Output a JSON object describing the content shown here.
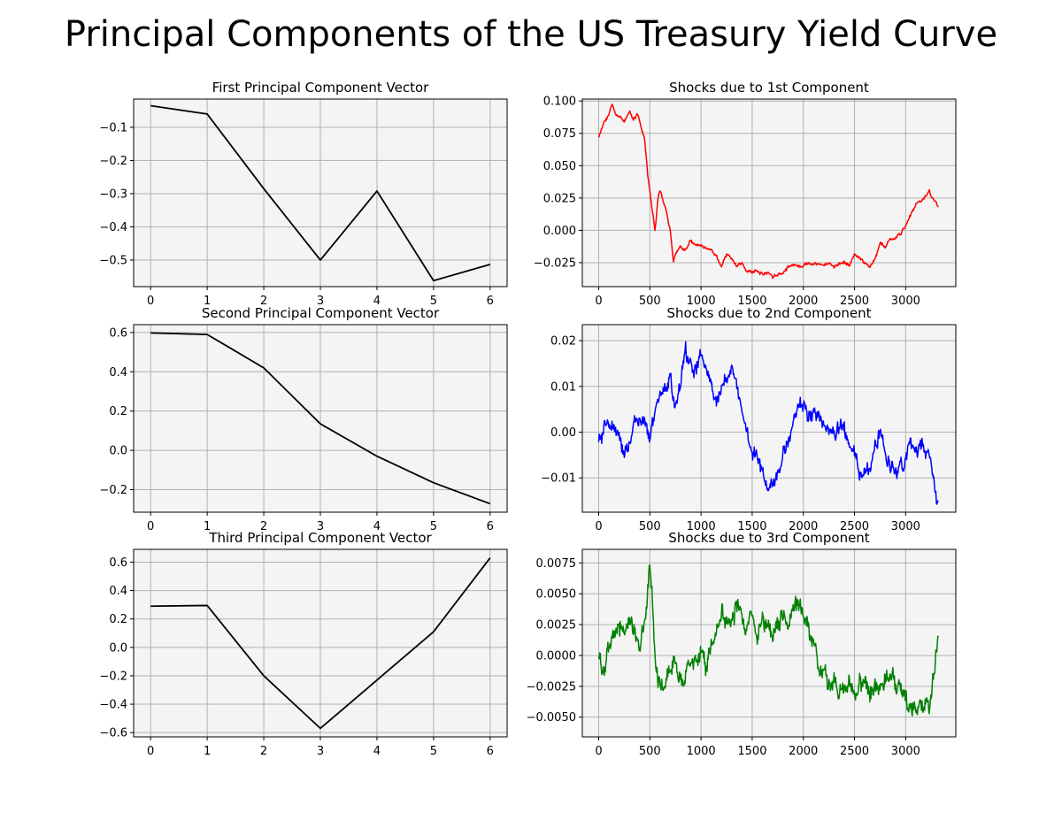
{
  "figure": {
    "title": "Principal Components of the US Treasury Yield Curve"
  },
  "chart_data": [
    {
      "type": "line",
      "title": "First Principal Component Vector",
      "color": "#000000",
      "x": [
        0,
        1,
        2,
        3,
        4,
        5,
        6
      ],
      "y": [
        -0.035,
        -0.06,
        -0.285,
        -0.5,
        -0.292,
        -0.562,
        -0.513
      ],
      "xlim": [
        -0.3,
        6.3
      ],
      "ylim": [
        -0.58,
        -0.015
      ],
      "xticks": [
        0,
        1,
        2,
        3,
        4,
        5,
        6
      ],
      "yticks": [
        -0.5,
        -0.4,
        -0.3,
        -0.2,
        -0.1
      ],
      "ytick_labels": [
        "−0.5",
        "−0.4",
        "−0.3",
        "−0.2",
        "−0.1"
      ],
      "grid": true,
      "background": "#f4f4f4"
    },
    {
      "type": "line",
      "title": "Shocks due to 1st Component",
      "color": "#ff0000",
      "keypoints": [
        [
          0,
          0.072
        ],
        [
          20,
          0.076
        ],
        [
          60,
          0.085
        ],
        [
          100,
          0.09
        ],
        [
          130,
          0.097
        ],
        [
          160,
          0.091
        ],
        [
          200,
          0.088
        ],
        [
          250,
          0.085
        ],
        [
          300,
          0.091
        ],
        [
          340,
          0.087
        ],
        [
          380,
          0.09
        ],
        [
          420,
          0.078
        ],
        [
          450,
          0.07
        ],
        [
          480,
          0.042
        ],
        [
          500,
          0.03
        ],
        [
          530,
          0.012
        ],
        [
          550,
          0.0
        ],
        [
          580,
          0.025
        ],
        [
          600,
          0.03
        ],
        [
          650,
          0.018
        ],
        [
          700,
          0.0
        ],
        [
          730,
          -0.025
        ],
        [
          760,
          -0.018
        ],
        [
          800,
          -0.012
        ],
        [
          850,
          -0.015
        ],
        [
          900,
          -0.008
        ],
        [
          950,
          -0.013
        ],
        [
          1000,
          -0.01
        ],
        [
          1050,
          -0.013
        ],
        [
          1100,
          -0.015
        ],
        [
          1150,
          -0.02
        ],
        [
          1200,
          -0.027
        ],
        [
          1250,
          -0.019
        ],
        [
          1300,
          -0.022
        ],
        [
          1350,
          -0.028
        ],
        [
          1400,
          -0.025
        ],
        [
          1450,
          -0.031
        ],
        [
          1500,
          -0.033
        ],
        [
          1550,
          -0.031
        ],
        [
          1600,
          -0.034
        ],
        [
          1650,
          -0.032
        ],
        [
          1700,
          -0.035
        ],
        [
          1750,
          -0.034
        ],
        [
          1800,
          -0.033
        ],
        [
          1850,
          -0.028
        ],
        [
          1900,
          -0.027
        ],
        [
          1950,
          -0.026
        ],
        [
          2000,
          -0.028
        ],
        [
          2050,
          -0.025
        ],
        [
          2100,
          -0.027
        ],
        [
          2150,
          -0.026
        ],
        [
          2200,
          -0.027
        ],
        [
          2250,
          -0.025
        ],
        [
          2300,
          -0.028
        ],
        [
          2350,
          -0.026
        ],
        [
          2400,
          -0.024
        ],
        [
          2450,
          -0.027
        ],
        [
          2500,
          -0.019
        ],
        [
          2550,
          -0.022
        ],
        [
          2600,
          -0.025
        ],
        [
          2650,
          -0.028
        ],
        [
          2700,
          -0.023
        ],
        [
          2750,
          -0.01
        ],
        [
          2800,
          -0.013
        ],
        [
          2850,
          -0.007
        ],
        [
          2900,
          -0.006
        ],
        [
          2950,
          -0.003
        ],
        [
          3000,
          0.004
        ],
        [
          3050,
          0.012
        ],
        [
          3100,
          0.02
        ],
        [
          3150,
          0.023
        ],
        [
          3200,
          0.027
        ],
        [
          3230,
          0.031
        ],
        [
          3260,
          0.025
        ],
        [
          3290,
          0.022
        ],
        [
          3320,
          0.018
        ]
      ],
      "noise": 0.0025,
      "xlim": [
        -160,
        3490
      ],
      "ylim": [
        -0.0435,
        0.1015
      ],
      "xticks": [
        0,
        500,
        1000,
        1500,
        2000,
        2500,
        3000
      ],
      "yticks": [
        -0.025,
        0.0,
        0.025,
        0.05,
        0.075,
        0.1
      ],
      "ytick_labels": [
        "−0.025",
        "0.000",
        "0.025",
        "0.050",
        "0.075",
        "0.100"
      ],
      "grid": true,
      "background": "#f4f4f4"
    },
    {
      "type": "line",
      "title": "Second Principal Component Vector",
      "color": "#000000",
      "x": [
        0,
        1,
        2,
        3,
        4,
        5,
        6
      ],
      "y": [
        0.598,
        0.59,
        0.42,
        0.135,
        -0.03,
        -0.165,
        -0.272
      ],
      "xlim": [
        -0.3,
        6.3
      ],
      "ylim": [
        -0.315,
        0.64
      ],
      "xticks": [
        0,
        1,
        2,
        3,
        4,
        5,
        6
      ],
      "yticks": [
        -0.2,
        0.0,
        0.2,
        0.4,
        0.6
      ],
      "ytick_labels": [
        "−0.2",
        "0.0",
        "0.2",
        "0.4",
        "0.6"
      ],
      "grid": true,
      "background": "#f4f4f4"
    },
    {
      "type": "line",
      "title": "Shocks due to 2nd Component",
      "color": "#0000ff",
      "keypoints": [
        [
          0,
          -0.002
        ],
        [
          50,
          -0.001
        ],
        [
          100,
          0.003
        ],
        [
          150,
          0.0
        ],
        [
          200,
          -0.003
        ],
        [
          250,
          -0.004
        ],
        [
          300,
          -0.002
        ],
        [
          350,
          0.002
        ],
        [
          400,
          0.003
        ],
        [
          450,
          0.001
        ],
        [
          500,
          -0.002
        ],
        [
          550,
          0.004
        ],
        [
          600,
          0.007
        ],
        [
          650,
          0.01
        ],
        [
          700,
          0.012
        ],
        [
          750,
          0.005
        ],
        [
          800,
          0.01
        ],
        [
          850,
          0.018
        ],
        [
          900,
          0.015
        ],
        [
          950,
          0.013
        ],
        [
          1000,
          0.017
        ],
        [
          1050,
          0.013
        ],
        [
          1100,
          0.01
        ],
        [
          1150,
          0.005
        ],
        [
          1200,
          0.01
        ],
        [
          1250,
          0.012
        ],
        [
          1300,
          0.015
        ],
        [
          1350,
          0.01
        ],
        [
          1400,
          0.005
        ],
        [
          1450,
          0.0
        ],
        [
          1500,
          -0.005
        ],
        [
          1550,
          -0.006
        ],
        [
          1600,
          -0.008
        ],
        [
          1650,
          -0.012
        ],
        [
          1700,
          -0.01
        ],
        [
          1750,
          -0.008
        ],
        [
          1800,
          -0.006
        ],
        [
          1850,
          -0.003
        ],
        [
          1900,
          0.003
        ],
        [
          1950,
          0.005
        ],
        [
          2000,
          0.006
        ],
        [
          2050,
          0.004
        ],
        [
          2100,
          0.005
        ],
        [
          2150,
          0.002
        ],
        [
          2200,
          0.003
        ],
        [
          2250,
          0.0
        ],
        [
          2300,
          -0.001
        ],
        [
          2350,
          0.001
        ],
        [
          2400,
          0.0
        ],
        [
          2450,
          -0.003
        ],
        [
          2500,
          -0.005
        ],
        [
          2550,
          -0.01
        ],
        [
          2600,
          -0.009
        ],
        [
          2650,
          -0.008
        ],
        [
          2700,
          -0.003
        ],
        [
          2750,
          0.0
        ],
        [
          2800,
          -0.005
        ],
        [
          2850,
          -0.007
        ],
        [
          2900,
          -0.008
        ],
        [
          2950,
          -0.006
        ],
        [
          3000,
          -0.006
        ],
        [
          3050,
          -0.003
        ],
        [
          3100,
          -0.004
        ],
        [
          3150,
          -0.003
        ],
        [
          3200,
          -0.005
        ],
        [
          3250,
          -0.008
        ],
        [
          3280,
          -0.012
        ],
        [
          3320,
          -0.015
        ]
      ],
      "noise": 0.0035,
      "xlim": [
        -160,
        3490
      ],
      "ylim": [
        -0.0175,
        0.0235
      ],
      "xticks": [
        0,
        500,
        1000,
        1500,
        2000,
        2500,
        3000
      ],
      "yticks": [
        -0.01,
        0.0,
        0.01,
        0.02
      ],
      "ytick_labels": [
        "−0.01",
        "0.00",
        "0.01",
        "0.02"
      ],
      "grid": true,
      "background": "#f4f4f4"
    },
    {
      "type": "line",
      "title": "Third Principal Component Vector",
      "color": "#000000",
      "x": [
        0,
        1,
        2,
        3,
        4,
        5,
        6
      ],
      "y": [
        0.29,
        0.295,
        -0.2,
        -0.57,
        -0.23,
        0.11,
        0.63
      ],
      "xlim": [
        -0.3,
        6.3
      ],
      "ylim": [
        -0.63,
        0.69
      ],
      "xticks": [
        0,
        1,
        2,
        3,
        4,
        5,
        6
      ],
      "yticks": [
        -0.6,
        -0.4,
        -0.2,
        0.0,
        0.2,
        0.4,
        0.6
      ],
      "ytick_labels": [
        "−0.6",
        "−0.4",
        "−0.2",
        "0.0",
        "0.2",
        "0.4",
        "0.6"
      ],
      "grid": true,
      "background": "#f4f4f4"
    },
    {
      "type": "line",
      "title": "Shocks due to 3rd Component",
      "color": "#008000",
      "keypoints": [
        [
          0,
          0.0
        ],
        [
          50,
          -0.001
        ],
        [
          100,
          0.0
        ],
        [
          150,
          0.0015
        ],
        [
          200,
          0.0025
        ],
        [
          250,
          0.0015
        ],
        [
          300,
          0.003
        ],
        [
          350,
          0.002
        ],
        [
          400,
          0.001
        ],
        [
          450,
          0.003
        ],
        [
          480,
          0.005
        ],
        [
          500,
          0.007
        ],
        [
          520,
          0.0045
        ],
        [
          550,
          0.0
        ],
        [
          580,
          -0.003
        ],
        [
          600,
          -0.002
        ],
        [
          650,
          -0.0035
        ],
        [
          700,
          -0.001
        ],
        [
          750,
          -0.0005
        ],
        [
          800,
          -0.0015
        ],
        [
          850,
          -0.002
        ],
        [
          900,
          -0.001
        ],
        [
          950,
          -0.0005
        ],
        [
          1000,
          0.0005
        ],
        [
          1050,
          -0.001
        ],
        [
          1100,
          0.001
        ],
        [
          1150,
          0.002
        ],
        [
          1200,
          0.004
        ],
        [
          1250,
          0.003
        ],
        [
          1300,
          0.0025
        ],
        [
          1350,
          0.004
        ],
        [
          1400,
          0.003
        ],
        [
          1450,
          0.0025
        ],
        [
          1500,
          0.0035
        ],
        [
          1550,
          0.002
        ],
        [
          1600,
          0.003
        ],
        [
          1650,
          0.0025
        ],
        [
          1700,
          0.0025
        ],
        [
          1750,
          0.003
        ],
        [
          1800,
          0.0035
        ],
        [
          1850,
          0.002
        ],
        [
          1900,
          0.003
        ],
        [
          1950,
          0.004
        ],
        [
          2000,
          0.0035
        ],
        [
          2050,
          0.0025
        ],
        [
          2100,
          0.001
        ],
        [
          2150,
          -0.001
        ],
        [
          2200,
          -0.0015
        ],
        [
          2250,
          -0.003
        ],
        [
          2300,
          -0.002
        ],
        [
          2350,
          -0.0025
        ],
        [
          2400,
          -0.002
        ],
        [
          2450,
          -0.0025
        ],
        [
          2500,
          -0.003
        ],
        [
          2550,
          -0.002
        ],
        [
          2600,
          -0.002
        ],
        [
          2650,
          -0.0035
        ],
        [
          2700,
          -0.0025
        ],
        [
          2750,
          -0.003
        ],
        [
          2800,
          -0.002
        ],
        [
          2850,
          -0.001
        ],
        [
          2900,
          -0.0015
        ],
        [
          2950,
          -0.0025
        ],
        [
          3000,
          -0.0035
        ],
        [
          3050,
          -0.004
        ],
        [
          3100,
          -0.0045
        ],
        [
          3150,
          -0.004
        ],
        [
          3200,
          -0.0045
        ],
        [
          3250,
          -0.0035
        ],
        [
          3280,
          -0.001
        ],
        [
          3300,
          0.0005
        ],
        [
          3320,
          0.0015
        ]
      ],
      "noise": 0.0016,
      "xlim": [
        -160,
        3490
      ],
      "ylim": [
        -0.0066,
        0.0086
      ],
      "xticks": [
        0,
        500,
        1000,
        1500,
        2000,
        2500,
        3000
      ],
      "yticks": [
        -0.005,
        -0.0025,
        0.0,
        0.0025,
        0.005,
        0.0075
      ],
      "ytick_labels": [
        "−0.0050",
        "−0.0025",
        "0.0000",
        "0.0025",
        "0.0050",
        "0.0075"
      ],
      "grid": true,
      "background": "#f4f4f4"
    }
  ]
}
